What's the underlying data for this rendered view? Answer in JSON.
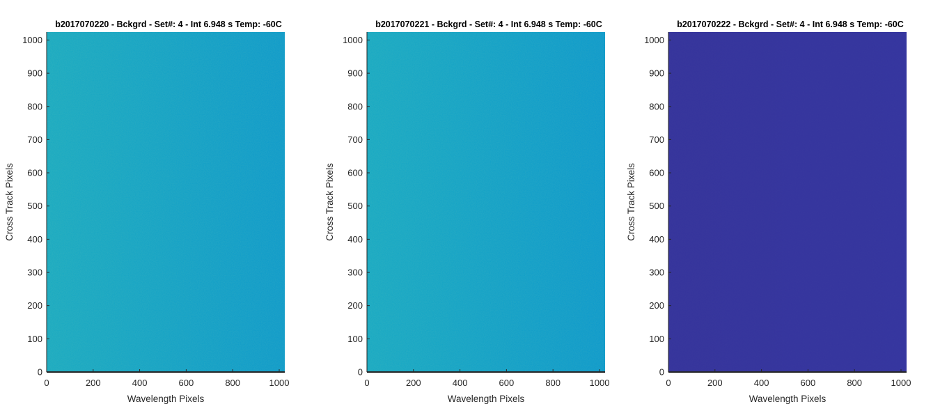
{
  "chart_data": [
    {
      "type": "heatmap",
      "title": "b2017070220 - Bckgrd - Set#: 4 - Int 6.948 s Temp: -60C",
      "xlabel": "Wavelength Pixels",
      "ylabel": "Cross Track Pixels",
      "xlim": [
        0,
        1024
      ],
      "ylim": [
        0,
        1024
      ],
      "xticks": [
        0,
        200,
        400,
        600,
        800,
        1000
      ],
      "yticks": [
        0,
        100,
        200,
        300,
        400,
        500,
        600,
        700,
        800,
        900,
        1000
      ],
      "colors": {
        "left": "#18aac2",
        "right": "#0c9acb"
      },
      "grid": false,
      "legend": "none"
    },
    {
      "type": "heatmap",
      "title": "b2017070221 - Bckgrd - Set#: 4 - Int 6.948 s Temp: -60C",
      "xlabel": "Wavelength Pixels",
      "ylabel": "Cross Track Pixels",
      "xlim": [
        0,
        1024
      ],
      "ylim": [
        0,
        1024
      ],
      "xticks": [
        0,
        200,
        400,
        600,
        800,
        1000
      ],
      "yticks": [
        0,
        100,
        200,
        300,
        400,
        500,
        600,
        700,
        800,
        900,
        1000
      ],
      "colors": {
        "left": "#16a9c4",
        "right": "#0b99cc"
      },
      "grid": false,
      "legend": "none"
    },
    {
      "type": "heatmap",
      "title": "b2017070222 - Bckgrd - Set#: 4 - Int 6.948 s Temp: -60C",
      "xlabel": "Wavelength Pixels",
      "ylabel": "Cross Track Pixels",
      "xlim": [
        0,
        1024
      ],
      "ylim": [
        0,
        1024
      ],
      "xticks": [
        0,
        200,
        400,
        600,
        800,
        1000
      ],
      "yticks": [
        0,
        100,
        200,
        300,
        400,
        500,
        600,
        700,
        800,
        900,
        1000
      ],
      "colors": {
        "left": "#35339c",
        "right": "#34349f"
      },
      "grid": false,
      "legend": "none"
    }
  ]
}
